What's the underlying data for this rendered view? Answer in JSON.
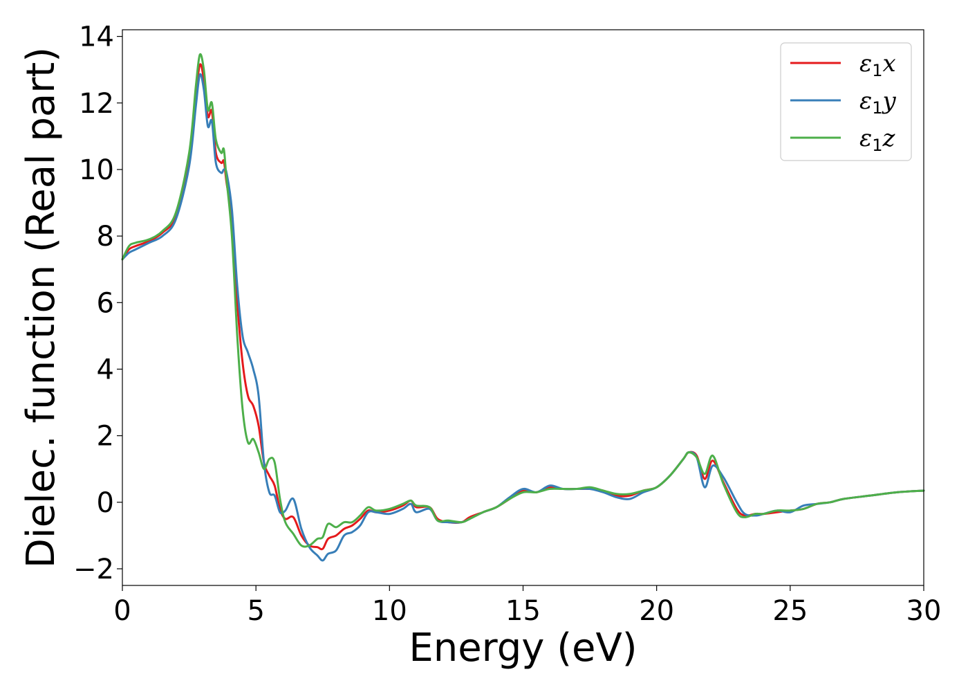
{
  "chart_data": {
    "type": "line",
    "xlabel": "Energy (eV)",
    "ylabel": "Dielec. function (Real part)",
    "xlim": [
      0,
      30
    ],
    "ylim": [
      -2.5,
      14.2
    ],
    "xticks": [
      0,
      5,
      10,
      15,
      20,
      25,
      30
    ],
    "yticks": [
      -2,
      0,
      2,
      4,
      6,
      8,
      10,
      12,
      14
    ],
    "xtick_labels": [
      "0",
      "5",
      "10",
      "15",
      "20",
      "25",
      "30"
    ],
    "ytick_labels": [
      "−2",
      "0",
      "2",
      "4",
      "6",
      "8",
      "10",
      "12",
      "14"
    ],
    "grid": false,
    "legend_position": "top-right",
    "series": [
      {
        "name": "ε₁x",
        "name_main": "ε",
        "name_sub": "1",
        "name_suffix": "x",
        "color": "#e41a1c",
        "points": [
          [
            0,
            7.3
          ],
          [
            0.25,
            7.6
          ],
          [
            0.5,
            7.7
          ],
          [
            1,
            7.85
          ],
          [
            1.5,
            8.1
          ],
          [
            2,
            8.6
          ],
          [
            2.5,
            10.3
          ],
          [
            2.75,
            12.2
          ],
          [
            2.9,
            13.15
          ],
          [
            3.05,
            12.7
          ],
          [
            3.2,
            11.6
          ],
          [
            3.35,
            11.75
          ],
          [
            3.5,
            10.5
          ],
          [
            3.7,
            10.2
          ],
          [
            3.8,
            10.25
          ],
          [
            3.9,
            9.6
          ],
          [
            4.1,
            8.5
          ],
          [
            4.3,
            6.0
          ],
          [
            4.5,
            4.2
          ],
          [
            4.7,
            3.2
          ],
          [
            4.9,
            2.9
          ],
          [
            5.1,
            2.3
          ],
          [
            5.3,
            1.2
          ],
          [
            5.5,
            0.8
          ],
          [
            5.7,
            0.5
          ],
          [
            5.9,
            -0.2
          ],
          [
            6.1,
            -0.5
          ],
          [
            6.4,
            -0.45
          ],
          [
            6.7,
            -1.0
          ],
          [
            7.0,
            -1.3
          ],
          [
            7.3,
            -1.35
          ],
          [
            7.5,
            -1.4
          ],
          [
            7.7,
            -1.1
          ],
          [
            8.0,
            -1.0
          ],
          [
            8.3,
            -0.8
          ],
          [
            8.6,
            -0.7
          ],
          [
            8.9,
            -0.5
          ],
          [
            9.2,
            -0.25
          ],
          [
            9.5,
            -0.3
          ],
          [
            10,
            -0.25
          ],
          [
            10.5,
            -0.1
          ],
          [
            10.8,
            0.05
          ],
          [
            11.0,
            -0.15
          ],
          [
            11.5,
            -0.15
          ],
          [
            11.8,
            -0.5
          ],
          [
            12.2,
            -0.6
          ],
          [
            12.7,
            -0.6
          ],
          [
            13.0,
            -0.45
          ],
          [
            13.5,
            -0.3
          ],
          [
            14.0,
            -0.15
          ],
          [
            14.5,
            0.1
          ],
          [
            15.0,
            0.35
          ],
          [
            15.5,
            0.3
          ],
          [
            16.0,
            0.45
          ],
          [
            16.5,
            0.4
          ],
          [
            17.0,
            0.4
          ],
          [
            17.5,
            0.4
          ],
          [
            18.0,
            0.35
          ],
          [
            18.5,
            0.2
          ],
          [
            19.0,
            0.2
          ],
          [
            19.5,
            0.35
          ],
          [
            20.0,
            0.45
          ],
          [
            20.5,
            0.8
          ],
          [
            21.0,
            1.3
          ],
          [
            21.2,
            1.5
          ],
          [
            21.5,
            1.4
          ],
          [
            21.8,
            0.7
          ],
          [
            22.1,
            1.25
          ],
          [
            22.5,
            0.6
          ],
          [
            23.0,
            -0.2
          ],
          [
            23.3,
            -0.4
          ],
          [
            23.7,
            -0.35
          ],
          [
            24.0,
            -0.35
          ],
          [
            24.5,
            -0.3
          ],
          [
            25.0,
            -0.25
          ],
          [
            25.5,
            -0.2
          ],
          [
            26.0,
            -0.05
          ],
          [
            26.5,
            0.0
          ],
          [
            27.0,
            0.1
          ],
          [
            28.0,
            0.2
          ],
          [
            29.0,
            0.3
          ],
          [
            30.0,
            0.35
          ]
        ]
      },
      {
        "name": "ε₁y",
        "name_main": "ε",
        "name_sub": "1",
        "name_suffix": "y",
        "color": "#377eb8",
        "points": [
          [
            0,
            7.3
          ],
          [
            0.25,
            7.5
          ],
          [
            0.5,
            7.6
          ],
          [
            1,
            7.8
          ],
          [
            1.5,
            8.0
          ],
          [
            2,
            8.5
          ],
          [
            2.5,
            10.1
          ],
          [
            2.75,
            11.9
          ],
          [
            2.9,
            12.85
          ],
          [
            3.05,
            12.4
          ],
          [
            3.2,
            11.3
          ],
          [
            3.35,
            11.45
          ],
          [
            3.5,
            10.2
          ],
          [
            3.7,
            9.9
          ],
          [
            3.8,
            10.0
          ],
          [
            3.9,
            9.9
          ],
          [
            4.1,
            8.8
          ],
          [
            4.3,
            6.5
          ],
          [
            4.5,
            5.0
          ],
          [
            4.7,
            4.5
          ],
          [
            4.9,
            4.0
          ],
          [
            5.1,
            3.2
          ],
          [
            5.3,
            1.2
          ],
          [
            5.5,
            0.3
          ],
          [
            5.7,
            0.2
          ],
          [
            5.9,
            -0.3
          ],
          [
            6.1,
            -0.25
          ],
          [
            6.4,
            0.1
          ],
          [
            6.7,
            -0.8
          ],
          [
            7.0,
            -1.35
          ],
          [
            7.3,
            -1.6
          ],
          [
            7.5,
            -1.75
          ],
          [
            7.7,
            -1.55
          ],
          [
            8.0,
            -1.45
          ],
          [
            8.3,
            -1.0
          ],
          [
            8.6,
            -0.9
          ],
          [
            8.9,
            -0.7
          ],
          [
            9.2,
            -0.3
          ],
          [
            9.5,
            -0.3
          ],
          [
            10,
            -0.35
          ],
          [
            10.5,
            -0.2
          ],
          [
            10.8,
            -0.05
          ],
          [
            11.0,
            -0.3
          ],
          [
            11.5,
            -0.2
          ],
          [
            11.8,
            -0.55
          ],
          [
            12.2,
            -0.6
          ],
          [
            12.7,
            -0.6
          ],
          [
            13.0,
            -0.5
          ],
          [
            13.5,
            -0.3
          ],
          [
            14.0,
            -0.15
          ],
          [
            14.5,
            0.15
          ],
          [
            15.0,
            0.4
          ],
          [
            15.5,
            0.3
          ],
          [
            16.0,
            0.5
          ],
          [
            16.5,
            0.4
          ],
          [
            17.0,
            0.4
          ],
          [
            17.5,
            0.4
          ],
          [
            18.0,
            0.3
          ],
          [
            18.5,
            0.15
          ],
          [
            19.0,
            0.1
          ],
          [
            19.5,
            0.3
          ],
          [
            20.0,
            0.45
          ],
          [
            20.5,
            0.8
          ],
          [
            21.0,
            1.3
          ],
          [
            21.2,
            1.5
          ],
          [
            21.5,
            1.35
          ],
          [
            21.8,
            0.45
          ],
          [
            22.1,
            1.1
          ],
          [
            22.5,
            0.75
          ],
          [
            23.0,
            0.0
          ],
          [
            23.3,
            -0.35
          ],
          [
            23.7,
            -0.4
          ],
          [
            24.0,
            -0.35
          ],
          [
            24.5,
            -0.25
          ],
          [
            25.0,
            -0.3
          ],
          [
            25.5,
            -0.1
          ],
          [
            26.0,
            -0.05
          ],
          [
            26.5,
            0.0
          ],
          [
            27.0,
            0.1
          ],
          [
            28.0,
            0.2
          ],
          [
            29.0,
            0.3
          ],
          [
            30.0,
            0.35
          ]
        ]
      },
      {
        "name": "ε₁z",
        "name_main": "ε",
        "name_sub": "1",
        "name_suffix": "z",
        "color": "#4daf4a",
        "points": [
          [
            0,
            7.3
          ],
          [
            0.25,
            7.7
          ],
          [
            0.5,
            7.8
          ],
          [
            1,
            7.9
          ],
          [
            1.5,
            8.15
          ],
          [
            2,
            8.7
          ],
          [
            2.5,
            10.5
          ],
          [
            2.75,
            12.5
          ],
          [
            2.9,
            13.45
          ],
          [
            3.05,
            13.0
          ],
          [
            3.2,
            11.8
          ],
          [
            3.35,
            12.0
          ],
          [
            3.5,
            10.9
          ],
          [
            3.7,
            10.5
          ],
          [
            3.8,
            10.6
          ],
          [
            3.9,
            9.7
          ],
          [
            4.1,
            8.0
          ],
          [
            4.3,
            5.0
          ],
          [
            4.5,
            2.8
          ],
          [
            4.7,
            1.8
          ],
          [
            4.9,
            1.9
          ],
          [
            5.1,
            1.5
          ],
          [
            5.3,
            1.0
          ],
          [
            5.5,
            1.3
          ],
          [
            5.7,
            1.2
          ],
          [
            5.9,
            0.1
          ],
          [
            6.1,
            -0.6
          ],
          [
            6.4,
            -0.95
          ],
          [
            6.7,
            -1.3
          ],
          [
            7.0,
            -1.3
          ],
          [
            7.3,
            -1.1
          ],
          [
            7.5,
            -1.05
          ],
          [
            7.7,
            -0.65
          ],
          [
            8.0,
            -0.75
          ],
          [
            8.3,
            -0.6
          ],
          [
            8.6,
            -0.6
          ],
          [
            8.9,
            -0.4
          ],
          [
            9.2,
            -0.15
          ],
          [
            9.5,
            -0.25
          ],
          [
            10,
            -0.2
          ],
          [
            10.5,
            -0.05
          ],
          [
            10.8,
            0.05
          ],
          [
            11.0,
            -0.1
          ],
          [
            11.5,
            -0.15
          ],
          [
            11.8,
            -0.55
          ],
          [
            12.2,
            -0.55
          ],
          [
            12.7,
            -0.6
          ],
          [
            13.0,
            -0.5
          ],
          [
            13.5,
            -0.3
          ],
          [
            14.0,
            -0.15
          ],
          [
            14.5,
            0.1
          ],
          [
            15.0,
            0.3
          ],
          [
            15.5,
            0.3
          ],
          [
            16.0,
            0.4
          ],
          [
            16.5,
            0.4
          ],
          [
            17.0,
            0.4
          ],
          [
            17.5,
            0.45
          ],
          [
            18.0,
            0.35
          ],
          [
            18.5,
            0.25
          ],
          [
            19.0,
            0.25
          ],
          [
            19.5,
            0.35
          ],
          [
            20.0,
            0.45
          ],
          [
            20.5,
            0.8
          ],
          [
            21.0,
            1.3
          ],
          [
            21.2,
            1.5
          ],
          [
            21.5,
            1.35
          ],
          [
            21.8,
            0.85
          ],
          [
            22.1,
            1.4
          ],
          [
            22.5,
            0.55
          ],
          [
            23.0,
            -0.3
          ],
          [
            23.3,
            -0.45
          ],
          [
            23.7,
            -0.35
          ],
          [
            24.0,
            -0.35
          ],
          [
            24.5,
            -0.25
          ],
          [
            25.0,
            -0.25
          ],
          [
            25.5,
            -0.2
          ],
          [
            26.0,
            -0.05
          ],
          [
            26.5,
            0.0
          ],
          [
            27.0,
            0.1
          ],
          [
            28.0,
            0.2
          ],
          [
            29.0,
            0.3
          ],
          [
            30.0,
            0.35
          ]
        ]
      }
    ]
  }
}
